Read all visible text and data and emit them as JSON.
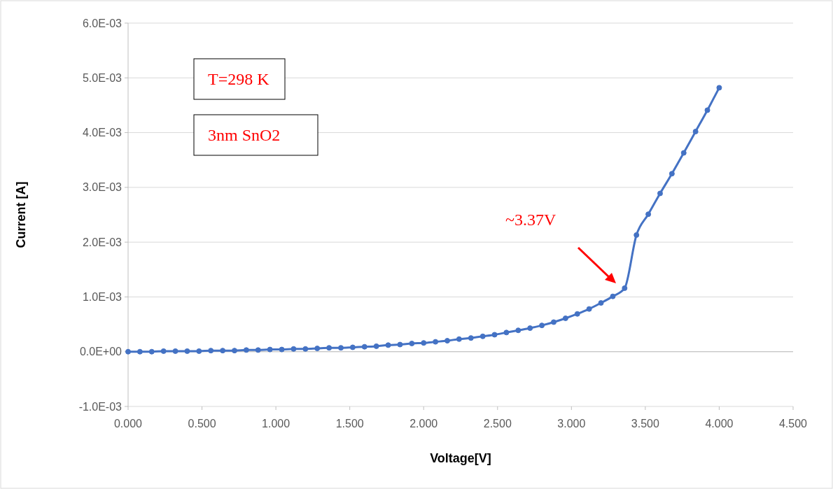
{
  "chart_data": {
    "type": "line",
    "xlabel": "Voltage[V]",
    "ylabel": "Current [A]",
    "x": [
      0,
      0.08,
      0.16,
      0.24,
      0.32,
      0.4,
      0.48,
      0.56,
      0.64,
      0.72,
      0.8,
      0.88,
      0.96,
      1.04,
      1.12,
      1.2,
      1.28,
      1.36,
      1.44,
      1.52,
      1.6,
      1.68,
      1.76,
      1.84,
      1.92,
      2.0,
      2.08,
      2.16,
      2.24,
      2.32,
      2.4,
      2.48,
      2.56,
      2.64,
      2.72,
      2.8,
      2.88,
      2.96,
      3.04,
      3.12,
      3.2,
      3.28,
      3.36,
      3.44,
      3.52,
      3.6,
      3.68,
      3.76,
      3.84,
      3.92,
      4.0
    ],
    "series": [
      {
        "color": "#4472c4",
        "values": [
          0,
          0,
          0,
          1e-05,
          1e-05,
          1e-05,
          1e-05,
          2e-05,
          2e-05,
          2e-05,
          3e-05,
          3e-05,
          4e-05,
          4e-05,
          5e-05,
          5e-05,
          6e-05,
          7e-05,
          7e-05,
          8e-05,
          9e-05,
          0.0001,
          0.00012,
          0.00013,
          0.00015,
          0.00016,
          0.00018,
          0.0002,
          0.00023,
          0.00025,
          0.00028,
          0.00031,
          0.00035,
          0.00039,
          0.00043,
          0.00048,
          0.00054,
          0.00061,
          0.00069,
          0.00078,
          0.00089,
          0.00101,
          0.00116,
          0.00213,
          0.00251,
          0.00289,
          0.00325,
          0.00363,
          0.00402,
          0.00441,
          0.00482
        ]
      }
    ],
    "xlim": [
      0,
      4.5
    ],
    "ylim": [
      -0.001,
      0.006
    ],
    "xticks": [
      {
        "value": 0,
        "label": "0.000"
      },
      {
        "value": 0.5,
        "label": "0.500"
      },
      {
        "value": 1,
        "label": "1.000"
      },
      {
        "value": 1.5,
        "label": "1.500"
      },
      {
        "value": 2,
        "label": "2.000"
      },
      {
        "value": 2.5,
        "label": "2.500"
      },
      {
        "value": 3,
        "label": "3.000"
      },
      {
        "value": 3.5,
        "label": "3.500"
      },
      {
        "value": 4,
        "label": "4.000"
      },
      {
        "value": 4.5,
        "label": "4.500"
      }
    ],
    "yticks": [
      {
        "value": -0.001,
        "label": "-1.0E-03"
      },
      {
        "value": 0,
        "label": "0.0E+00"
      },
      {
        "value": 0.001,
        "label": "1.0E-03"
      },
      {
        "value": 0.002,
        "label": "2.0E-03"
      },
      {
        "value": 0.003,
        "label": "3.0E-03"
      },
      {
        "value": 0.004,
        "label": "4.0E-03"
      },
      {
        "value": 0.005,
        "label": "5.0E-03"
      },
      {
        "value": 0.006,
        "label": "6.0E-03"
      }
    ],
    "grid": "y",
    "marker": "circle",
    "line_style": "solid",
    "annotations": [
      "T=298 K",
      "3nm SnO2",
      "~3.37V"
    ]
  }
}
